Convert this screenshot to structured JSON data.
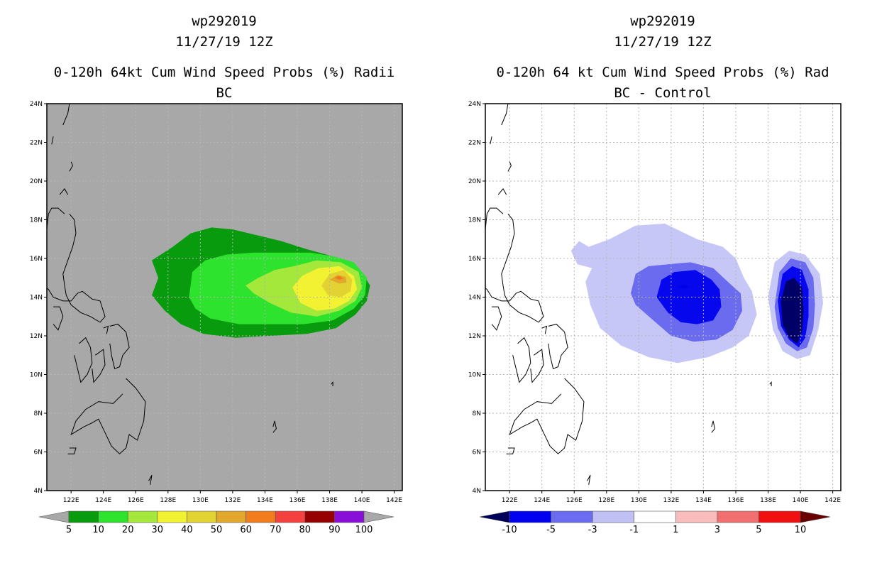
{
  "chart_data": [
    {
      "type": "heatmap",
      "id_hint": "left",
      "title_lines": [
        "wp292019",
        "11/27/19 12Z"
      ],
      "subtitle_lines": [
        "0-120h 64kt Cum Wind Speed Probs (%)",
        "Radii BC"
      ],
      "xlim": [
        120.5,
        142.5
      ],
      "ylim": [
        4,
        24
      ],
      "x_ticks": [
        122,
        124,
        126,
        128,
        130,
        132,
        134,
        136,
        138,
        140,
        142
      ],
      "x_tick_labels": [
        "122E",
        "124E",
        "126E",
        "128E",
        "130E",
        "132E",
        "134E",
        "136E",
        "138E",
        "140E",
        "142E"
      ],
      "y_ticks": [
        4,
        6,
        8,
        10,
        12,
        14,
        16,
        18,
        20,
        22,
        24
      ],
      "y_tick_labels": [
        "4N",
        "6N",
        "8N",
        "10N",
        "12N",
        "14N",
        "16N",
        "18N",
        "20N",
        "22N",
        "24N"
      ],
      "grid": true,
      "background_color": "#a8a8a8",
      "legend": {
        "placement": "bottom",
        "labels": [
          "5",
          "10",
          "20",
          "30",
          "40",
          "50",
          "60",
          "70",
          "80",
          "90",
          "100"
        ],
        "colors": [
          "#079b0d",
          "#2ee32e",
          "#a3e83a",
          "#f2f232",
          "#e2d232",
          "#e2a82b",
          "#f07c1e",
          "#f54040",
          "#960000",
          "#8a10d9"
        ],
        "end_colors": [
          "#a8a8a8",
          "#a8a8a8"
        ]
      },
      "levels": [
        {
          "label": "5",
          "color": "#079b0d",
          "polygon": [
            [
              127.0,
              14.1
            ],
            [
              127.4,
              15.0
            ],
            [
              127.0,
              15.9
            ],
            [
              128.3,
              16.6
            ],
            [
              129.4,
              17.3
            ],
            [
              130.7,
              17.6
            ],
            [
              132.0,
              17.5
            ],
            [
              133.5,
              17.2
            ],
            [
              135.0,
              16.9
            ],
            [
              136.5,
              16.5
            ],
            [
              137.8,
              16.2
            ],
            [
              139.0,
              15.9
            ],
            [
              140.0,
              15.3
            ],
            [
              140.5,
              14.6
            ],
            [
              140.3,
              13.8
            ],
            [
              139.6,
              13.1
            ],
            [
              138.4,
              12.4
            ],
            [
              136.6,
              12.1
            ],
            [
              134.3,
              12.0
            ],
            [
              132.2,
              11.9
            ],
            [
              130.2,
              12.1
            ],
            [
              128.8,
              12.6
            ],
            [
              127.8,
              13.3
            ]
          ]
        },
        {
          "label": "10",
          "color": "#2ee32e",
          "polygon": [
            [
              129.3,
              14.0
            ],
            [
              129.5,
              15.3
            ],
            [
              130.3,
              15.9
            ],
            [
              131.6,
              16.2
            ],
            [
              133.3,
              16.3
            ],
            [
              135.2,
              16.3
            ],
            [
              136.8,
              16.3
            ],
            [
              138.3,
              16.1
            ],
            [
              139.5,
              15.8
            ],
            [
              140.3,
              15.0
            ],
            [
              140.2,
              14.1
            ],
            [
              139.5,
              13.4
            ],
            [
              138.2,
              12.8
            ],
            [
              136.4,
              12.6
            ],
            [
              134.4,
              12.6
            ],
            [
              132.4,
              12.6
            ],
            [
              130.6,
              12.9
            ],
            [
              129.7,
              13.4
            ]
          ]
        },
        {
          "label": "20",
          "color": "#a3e83a",
          "polygon": [
            [
              132.8,
              14.6
            ],
            [
              133.6,
              15.0
            ],
            [
              134.6,
              15.4
            ],
            [
              135.8,
              15.6
            ],
            [
              137.2,
              15.9
            ],
            [
              138.7,
              15.8
            ],
            [
              139.8,
              15.3
            ],
            [
              140.0,
              14.5
            ],
            [
              139.6,
              13.8
            ],
            [
              138.6,
              13.3
            ],
            [
              137.2,
              13.0
            ],
            [
              135.6,
              13.2
            ],
            [
              134.3,
              13.7
            ],
            [
              133.3,
              14.2
            ]
          ]
        },
        {
          "label": "30",
          "color": "#f2f232",
          "polygon": [
            [
              135.7,
              14.5
            ],
            [
              136.3,
              15.1
            ],
            [
              137.3,
              15.5
            ],
            [
              138.6,
              15.6
            ],
            [
              139.5,
              15.1
            ],
            [
              139.7,
              14.4
            ],
            [
              139.2,
              13.8
            ],
            [
              138.3,
              13.4
            ],
            [
              137.2,
              13.3
            ],
            [
              136.2,
              13.7
            ]
          ]
        },
        {
          "label": "40",
          "color": "#e2d232",
          "polygon": [
            [
              137.5,
              14.6
            ],
            [
              138.0,
              15.2
            ],
            [
              138.9,
              15.4
            ],
            [
              139.4,
              14.9
            ],
            [
              139.3,
              14.3
            ],
            [
              138.7,
              14.0
            ],
            [
              137.9,
              14.1
            ]
          ]
        },
        {
          "label": "50",
          "color": "#e2a82b",
          "polygon": [
            [
              138.0,
              14.9
            ],
            [
              138.5,
              15.15
            ],
            [
              139.0,
              15.05
            ],
            [
              139.05,
              14.75
            ],
            [
              138.6,
              14.7
            ]
          ]
        },
        {
          "label": "60",
          "color": "#f07c1e",
          "polygon": [
            [
              138.3,
              15.0
            ],
            [
              138.6,
              15.1
            ],
            [
              138.85,
              14.95
            ],
            [
              138.6,
              14.9
            ]
          ]
        }
      ]
    },
    {
      "type": "heatmap",
      "id_hint": "right",
      "title_lines": [
        "wp292019",
        "11/27/19 12Z"
      ],
      "subtitle_lines": [
        "0-120h 64 kt Cum Wind Speed Probs (%)",
        "Rad BC - Control"
      ],
      "xlim": [
        120.5,
        142.5
      ],
      "ylim": [
        4,
        24
      ],
      "x_ticks": [
        122,
        124,
        126,
        128,
        130,
        132,
        134,
        136,
        138,
        140,
        142
      ],
      "x_tick_labels": [
        "122E",
        "124E",
        "126E",
        "128E",
        "130E",
        "132E",
        "134E",
        "136E",
        "138E",
        "140E",
        "142E"
      ],
      "y_ticks": [
        4,
        6,
        8,
        10,
        12,
        14,
        16,
        18,
        20,
        22,
        24
      ],
      "y_tick_labels": [
        "4N",
        "6N",
        "8N",
        "10N",
        "12N",
        "14N",
        "16N",
        "18N",
        "20N",
        "22N",
        "24N"
      ],
      "grid": true,
      "background_color": "#ffffff",
      "legend": {
        "placement": "bottom",
        "labels": [
          "-10",
          "-5",
          "-3",
          "-1",
          "1",
          "3",
          "5",
          "10"
        ],
        "colors": [
          "#0000f0",
          "#6b6bf0",
          "#c0c0f5",
          "#ffffff",
          "#f8bcbc",
          "#f07070",
          "#f01010"
        ],
        "end_colors": [
          "#00005a",
          "#6a0000"
        ]
      },
      "levels": [
        {
          "label": "-1",
          "color": "#c7c7f7",
          "polygon": [
            [
              125.8,
              16.4
            ],
            [
              126.3,
              16.9
            ],
            [
              126.9,
              16.6
            ],
            [
              128.2,
              17.0
            ],
            [
              129.8,
              17.7
            ],
            [
              131.6,
              17.8
            ],
            [
              133.6,
              17.0
            ],
            [
              135.2,
              16.6
            ],
            [
              136.0,
              16.0
            ],
            [
              136.5,
              15.0
            ],
            [
              137.0,
              14.3
            ],
            [
              137.3,
              13.1
            ],
            [
              136.8,
              12.0
            ],
            [
              135.8,
              11.4
            ],
            [
              134.3,
              10.9
            ],
            [
              132.4,
              10.6
            ],
            [
              130.6,
              10.9
            ],
            [
              128.9,
              11.5
            ],
            [
              127.6,
              12.4
            ],
            [
              127.0,
              13.6
            ],
            [
              126.7,
              14.8
            ],
            [
              127.1,
              15.5
            ],
            [
              126.2,
              15.7
            ]
          ]
        },
        {
          "label": "-1",
          "color": "#c7c7f7",
          "polygon": [
            [
              138.0,
              14.0
            ],
            [
              138.4,
              15.8
            ],
            [
              139.3,
              16.4
            ],
            [
              140.3,
              16.2
            ],
            [
              141.2,
              15.2
            ],
            [
              141.4,
              13.7
            ],
            [
              141.1,
              12.3
            ],
            [
              140.6,
              11.0
            ],
            [
              139.8,
              10.8
            ],
            [
              138.9,
              11.2
            ],
            [
              138.3,
              12.3
            ]
          ]
        },
        {
          "label": "-3",
          "color": "#6b6bf0",
          "polygon": [
            [
              129.5,
              14.2
            ],
            [
              129.8,
              15.2
            ],
            [
              130.6,
              15.6
            ],
            [
              131.8,
              15.7
            ],
            [
              133.2,
              15.8
            ],
            [
              134.6,
              15.5
            ],
            [
              135.5,
              14.8
            ],
            [
              136.3,
              14.2
            ],
            [
              136.4,
              13.3
            ],
            [
              135.8,
              12.3
            ],
            [
              134.8,
              11.8
            ],
            [
              133.4,
              11.7
            ],
            [
              132.0,
              12.0
            ],
            [
              130.9,
              12.8
            ],
            [
              129.8,
              13.6
            ]
          ]
        },
        {
          "label": "-3",
          "color": "#6b6bf0",
          "polygon": [
            [
              138.4,
              13.5
            ],
            [
              138.7,
              15.3
            ],
            [
              139.4,
              16.0
            ],
            [
              140.3,
              15.8
            ],
            [
              140.8,
              15.0
            ],
            [
              140.9,
              13.6
            ],
            [
              140.8,
              12.4
            ],
            [
              140.4,
              11.4
            ],
            [
              139.8,
              11.2
            ],
            [
              139.1,
              11.6
            ],
            [
              138.6,
              12.4
            ]
          ]
        },
        {
          "label": "-5",
          "color": "#0707ee",
          "polygon": [
            [
              131.1,
              14.0
            ],
            [
              131.4,
              14.9
            ],
            [
              132.2,
              15.3
            ],
            [
              133.5,
              15.4
            ],
            [
              134.5,
              14.9
            ],
            [
              135.0,
              14.4
            ],
            [
              135.1,
              13.5
            ],
            [
              134.6,
              12.8
            ],
            [
              133.6,
              12.6
            ],
            [
              132.6,
              12.7
            ],
            [
              131.8,
              13.2
            ]
          ]
        },
        {
          "label": "-5",
          "color": "#0707ee",
          "polygon": [
            [
              138.6,
              13.8
            ],
            [
              138.9,
              15.2
            ],
            [
              139.5,
              15.6
            ],
            [
              140.1,
              15.4
            ],
            [
              140.5,
              14.4
            ],
            [
              140.5,
              13.0
            ],
            [
              140.3,
              11.9
            ],
            [
              139.9,
              11.4
            ],
            [
              139.3,
              11.8
            ],
            [
              138.8,
              12.5
            ]
          ]
        },
        {
          "label": "-10",
          "color": "#0000e6",
          "polygon": [
            [
              132.4,
              14.5
            ],
            [
              132.8,
              14.65
            ],
            [
              133.1,
              14.55
            ],
            [
              132.8,
              14.45
            ]
          ]
        },
        {
          "label": "-10",
          "color": "#000066",
          "polygon": [
            [
              138.8,
              13.8
            ],
            [
              139.1,
              14.8
            ],
            [
              139.6,
              15.0
            ],
            [
              140.1,
              14.5
            ],
            [
              140.2,
              13.3
            ],
            [
              140.1,
              12.2
            ],
            [
              139.8,
              11.6
            ],
            [
              139.3,
              11.9
            ],
            [
              138.9,
              12.6
            ]
          ]
        }
      ]
    }
  ]
}
